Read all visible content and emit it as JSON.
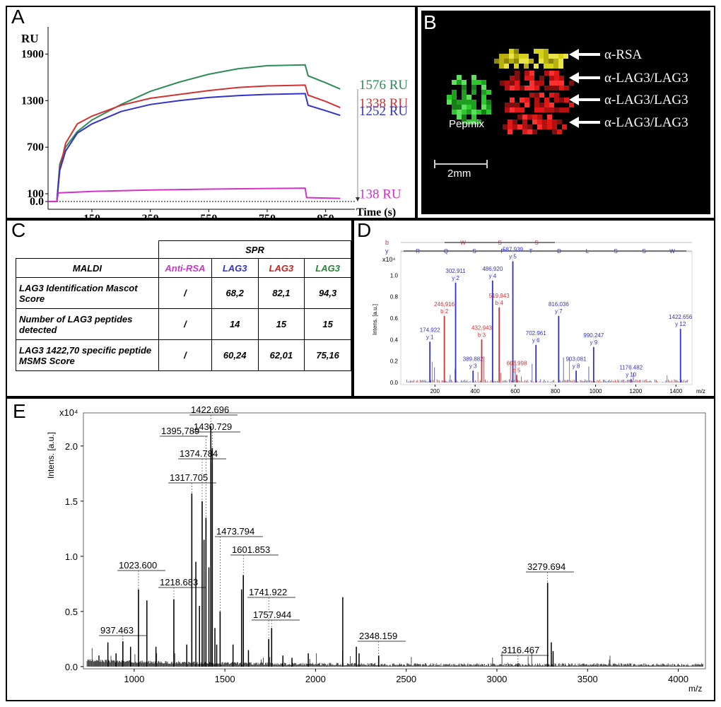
{
  "panels": {
    "a": {
      "label": "A"
    },
    "b": {
      "label": "B"
    },
    "c": {
      "label": "C"
    },
    "d": {
      "label": "D"
    },
    "e": {
      "label": "E"
    }
  },
  "panel_b": {
    "pepmix_label": "Pepmix",
    "scale_label": "2mm",
    "arrows": [
      "α-RSA",
      "α-LAG3/LAG3",
      "α-LAG3/LAG3",
      "α-LAG3/LAG3"
    ]
  },
  "panel_c": {
    "spr_header": "SPR",
    "maldi_header": "MALDI",
    "col_headers": [
      {
        "text": "Anti-RSA",
        "color": "#cc33cc"
      },
      {
        "text": "LAG3",
        "color": "#3333cc"
      },
      {
        "text": "LAG3",
        "color": "#cc2222"
      },
      {
        "text": "LAG3",
        "color": "#228833"
      }
    ],
    "rows": [
      {
        "label": "LAG3 Identification Mascot Score",
        "values": [
          "/",
          "68,2",
          "82,1",
          "94,3"
        ]
      },
      {
        "label": "Number of LAG3 peptides detected",
        "values": [
          "/",
          "14",
          "15",
          "15"
        ]
      },
      {
        "label": "LAG3 1422,70 specific peptide MSMS Score",
        "values": [
          "/",
          "60,24",
          "62,01",
          "75,16"
        ]
      }
    ]
  },
  "chart_data": [
    {
      "type": "line",
      "panel": "A",
      "ylabel": "RU",
      "xlabel": "Time (s)",
      "xlim": [
        0,
        1050
      ],
      "ylim": [
        -100,
        2050
      ],
      "xticks": [
        150,
        350,
        550,
        750,
        950
      ],
      "yticks": [
        0,
        100,
        700,
        1300,
        1900
      ],
      "ytick_labels": [
        "0.0",
        "100",
        "700",
        "1300",
        "1900"
      ],
      "series": [
        {
          "name": "1576 RU",
          "color": "#2e8b57",
          "x": [
            0,
            30,
            40,
            60,
            100,
            150,
            250,
            350,
            450,
            550,
            650,
            750,
            880,
            890,
            950,
            1000
          ],
          "y": [
            0,
            0,
            480,
            700,
            900,
            1050,
            1250,
            1420,
            1540,
            1640,
            1710,
            1750,
            1760,
            1620,
            1530,
            1450
          ]
        },
        {
          "name": "1338 RU",
          "color": "#d23232",
          "x": [
            0,
            30,
            40,
            60,
            100,
            150,
            250,
            350,
            450,
            550,
            650,
            750,
            880,
            890,
            950,
            1000
          ],
          "y": [
            0,
            0,
            420,
            750,
            1000,
            1100,
            1240,
            1330,
            1380,
            1430,
            1470,
            1490,
            1500,
            1370,
            1290,
            1210
          ]
        },
        {
          "name": "1252 RU",
          "color": "#3232c8",
          "x": [
            0,
            30,
            40,
            60,
            100,
            150,
            250,
            350,
            450,
            550,
            650,
            750,
            880,
            890,
            950,
            1000
          ],
          "y": [
            0,
            0,
            400,
            650,
            880,
            1000,
            1160,
            1250,
            1300,
            1340,
            1365,
            1380,
            1390,
            1240,
            1170,
            1110
          ]
        },
        {
          "name": "138 RU",
          "color": "#d232c8",
          "x": [
            0,
            30,
            35,
            150,
            350,
            550,
            750,
            880,
            885,
            950,
            1000
          ],
          "y": [
            0,
            0,
            110,
            130,
            148,
            160,
            168,
            172,
            50,
            45,
            40
          ]
        }
      ]
    },
    {
      "type": "bar",
      "panel": "D",
      "ylabel": "Intens. [a.u.]",
      "yexp": "x10⁴",
      "xlabel": "m/z",
      "xlim": [
        30,
        1480
      ],
      "ylim": [
        -0.02,
        1.18
      ],
      "xticks": [
        200,
        400,
        600,
        800,
        1000,
        1200,
        1400
      ],
      "yticks": [
        0.0,
        0.2,
        0.4,
        0.6,
        0.8,
        1.0
      ],
      "ytick_labels": [
        "0.0",
        "0.2",
        "0.4",
        "0.6",
        "0.8",
        "1.0"
      ],
      "b_ions": [
        "W",
        "S",
        "S"
      ],
      "y_ions": [
        "R",
        "Q",
        "S",
        "P",
        "T",
        "D",
        "L",
        "S",
        "S",
        "W"
      ],
      "peaks": [
        {
          "mz": 174.922,
          "i": 0.38,
          "label": "174.922",
          "ion": "y 1",
          "color": "#3232c8"
        },
        {
          "mz": 246.916,
          "i": 0.62,
          "label": "246.916",
          "ion": "b 2",
          "color": "#d23232"
        },
        {
          "mz": 302.911,
          "i": 0.93,
          "label": "302.911",
          "ion": "y 2",
          "color": "#3232c8"
        },
        {
          "mz": 389.882,
          "i": 0.11,
          "label": "389.882",
          "ion": "y 3",
          "color": "#3232c8"
        },
        {
          "mz": 432.943,
          "i": 0.4,
          "label": "432.943",
          "ion": "b 3",
          "color": "#d23232"
        },
        {
          "mz": 486.92,
          "i": 0.95,
          "label": "486.920",
          "ion": "y 4",
          "color": "#3232c8"
        },
        {
          "mz": 519.943,
          "i": 0.7,
          "label": "519.943",
          "ion": "b 4",
          "color": "#d23232"
        },
        {
          "mz": 587.939,
          "i": 1.13,
          "label": "587.939",
          "ion": "y 5",
          "color": "#3232c8"
        },
        {
          "mz": 606.998,
          "i": 0.07,
          "label": "606.998",
          "ion": "b 5",
          "color": "#d23232"
        },
        {
          "mz": 702.961,
          "i": 0.35,
          "label": "702.961",
          "ion": "y 6",
          "color": "#3232c8"
        },
        {
          "mz": 816.036,
          "i": 0.62,
          "label": "816.036",
          "ion": "y 7",
          "color": "#3232c8"
        },
        {
          "mz": 903.081,
          "i": 0.11,
          "label": "903.081",
          "ion": "y 8",
          "color": "#3232c8"
        },
        {
          "mz": 990.247,
          "i": 0.33,
          "label": "990.247",
          "ion": "y 9",
          "color": "#3232c8"
        },
        {
          "mz": 1176.482,
          "i": 0.03,
          "label": "1176.482",
          "ion": "y 10",
          "color": "#3232c8"
        },
        {
          "mz": 1422.656,
          "i": 0.5,
          "label": "1422.656",
          "ion": "y 12",
          "color": "#3232c8"
        }
      ]
    },
    {
      "type": "bar",
      "panel": "E",
      "ylabel": "Intens. [a.u.]",
      "yexp": "x10⁴",
      "xlabel": "m/z",
      "xlim": [
        720,
        4150
      ],
      "ylim": [
        -0.02,
        2.3
      ],
      "xticks": [
        1000,
        1500,
        2000,
        2500,
        3000,
        3500,
        4000
      ],
      "yticks": [
        0.0,
        0.5,
        1.0,
        1.5,
        2.0
      ],
      "ytick_labels": [
        "0.0",
        "0.5",
        "1.0",
        "1.5",
        "2.0"
      ],
      "peaks": [
        {
          "mz": 937.463,
          "i": 0.23,
          "label": "937.463"
        },
        {
          "mz": 1023.6,
          "i": 0.7,
          "label": "1023.600"
        },
        {
          "mz": 1218.683,
          "i": 0.61,
          "label": "1218.683"
        },
        {
          "mz": 1317.705,
          "i": 1.57,
          "label": "1317.705"
        },
        {
          "mz": 1374.784,
          "i": 1.5,
          "label": "1374.784"
        },
        {
          "mz": 1395.789,
          "i": 1.35,
          "label": "1395,789"
        },
        {
          "mz": 1422.696,
          "i": 2.18,
          "label": "1422.696"
        },
        {
          "mz": 1430.729,
          "i": 1.98,
          "label": "1430.729"
        },
        {
          "mz": 1473.794,
          "i": 0.5,
          "label": "1473.794"
        },
        {
          "mz": 1601.853,
          "i": 0.83,
          "label": "1601.853"
        },
        {
          "mz": 1741.922,
          "i": 0.25,
          "label": "1741.922"
        },
        {
          "mz": 1757.944,
          "i": 0.35,
          "label": "1757.944"
        },
        {
          "mz": 2348.159,
          "i": 0.1,
          "label": "2348.159"
        },
        {
          "mz": 3116.467,
          "i": 0.03,
          "label": "3116.467"
        },
        {
          "mz": 3279.694,
          "i": 0.76,
          "label": "3279.694"
        }
      ]
    }
  ]
}
